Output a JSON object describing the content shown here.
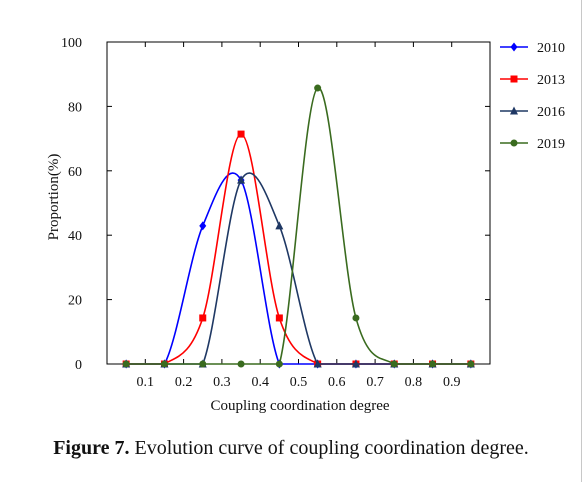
{
  "chart_data": {
    "type": "line",
    "xlabel": "Coupling coordination degree",
    "ylabel": "Proportion(%)",
    "xlim": [
      0.0,
      1.0
    ],
    "ylim": [
      0,
      100
    ],
    "x_ticks": [
      "0.1",
      "0.2",
      "0.3",
      "0.4",
      "0.5",
      "0.6",
      "0.7",
      "0.8",
      "0.9"
    ],
    "y_ticks": [
      "0",
      "20",
      "40",
      "60",
      "80",
      "100"
    ],
    "legend_position": "right",
    "series": [
      {
        "name": "2010",
        "color": "#0000ff",
        "marker": "diamond",
        "x": [
          0.05,
          0.15,
          0.25,
          0.35,
          0.45,
          0.55,
          0.65,
          0.75,
          0.85,
          0.95
        ],
        "y": [
          0,
          0,
          42.9,
          57.1,
          0,
          0,
          0,
          0,
          0,
          0
        ]
      },
      {
        "name": "2013",
        "color": "#ff0000",
        "marker": "square",
        "x": [
          0.05,
          0.15,
          0.25,
          0.35,
          0.45,
          0.55,
          0.65,
          0.75,
          0.85,
          0.95
        ],
        "y": [
          0,
          0,
          14.3,
          71.4,
          14.3,
          0,
          0,
          0,
          0,
          0
        ]
      },
      {
        "name": "2016",
        "color": "#1f3864",
        "marker": "triangle",
        "x": [
          0.05,
          0.15,
          0.25,
          0.35,
          0.45,
          0.55,
          0.65,
          0.75,
          0.85,
          0.95
        ],
        "y": [
          0,
          0,
          0,
          57.1,
          42.9,
          0,
          0,
          0,
          0,
          0
        ]
      },
      {
        "name": "2019",
        "color": "#3a6b1f",
        "marker": "circle",
        "x": [
          0.05,
          0.15,
          0.25,
          0.35,
          0.45,
          0.55,
          0.65,
          0.75,
          0.85,
          0.95
        ],
        "y": [
          0,
          0,
          0,
          0,
          0,
          85.7,
          14.3,
          0,
          0,
          0
        ]
      }
    ]
  },
  "caption": {
    "label": "Figure 7.",
    "text": " Evolution curve of coupling coordination degree."
  }
}
